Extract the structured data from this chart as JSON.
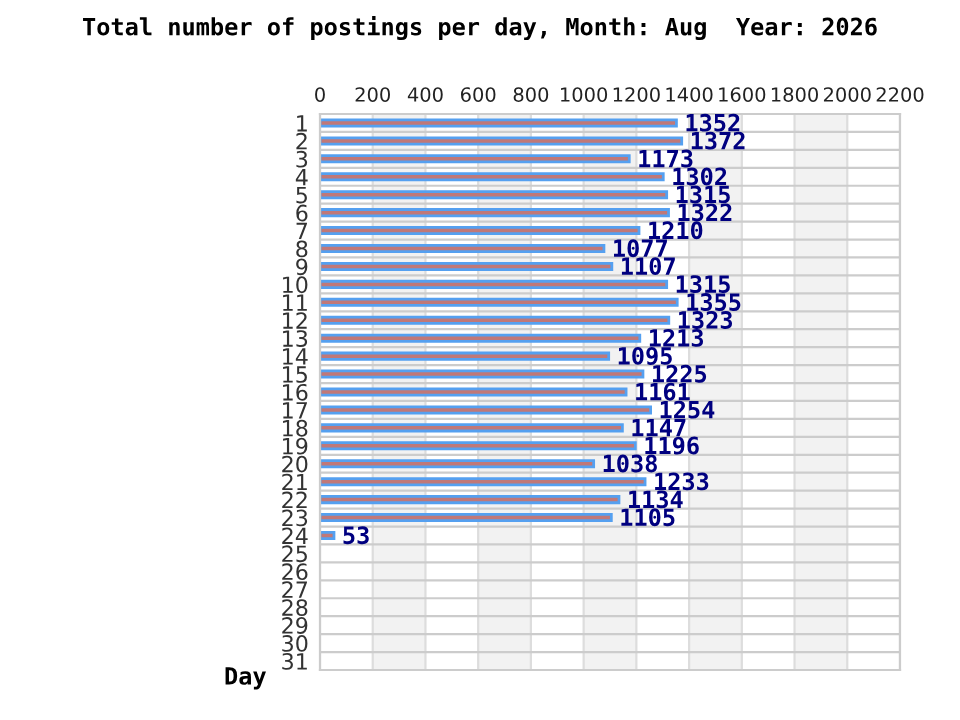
{
  "chart_data": {
    "type": "bar",
    "orientation": "horizontal",
    "title": "Total number of postings per day, Month: Aug  Year: 2026",
    "ylabel": "Day",
    "categories": [
      "1",
      "2",
      "3",
      "4",
      "5",
      "6",
      "7",
      "8",
      "9",
      "10",
      "11",
      "12",
      "13",
      "14",
      "15",
      "16",
      "17",
      "18",
      "19",
      "20",
      "21",
      "22",
      "23",
      "24",
      "25",
      "26",
      "27",
      "28",
      "29",
      "30",
      "31"
    ],
    "series": [
      {
        "color": "#c07878",
        "values": [
          1352,
          1372,
          1173,
          1302,
          1315,
          1322,
          1210,
          1077,
          1107,
          1315,
          1355,
          1323,
          1213,
          1095,
          1225,
          1161,
          1254,
          1147,
          1196,
          1038,
          1233,
          1134,
          1105,
          53,
          null,
          null,
          null,
          null,
          null,
          null,
          null
        ]
      }
    ],
    "xlim": [
      0,
      2200
    ],
    "xticks": [
      0,
      200,
      400,
      600,
      800,
      1000,
      1200,
      1400,
      1600,
      1800,
      2000,
      2200
    ],
    "grid": true,
    "data_labels": true
  }
}
